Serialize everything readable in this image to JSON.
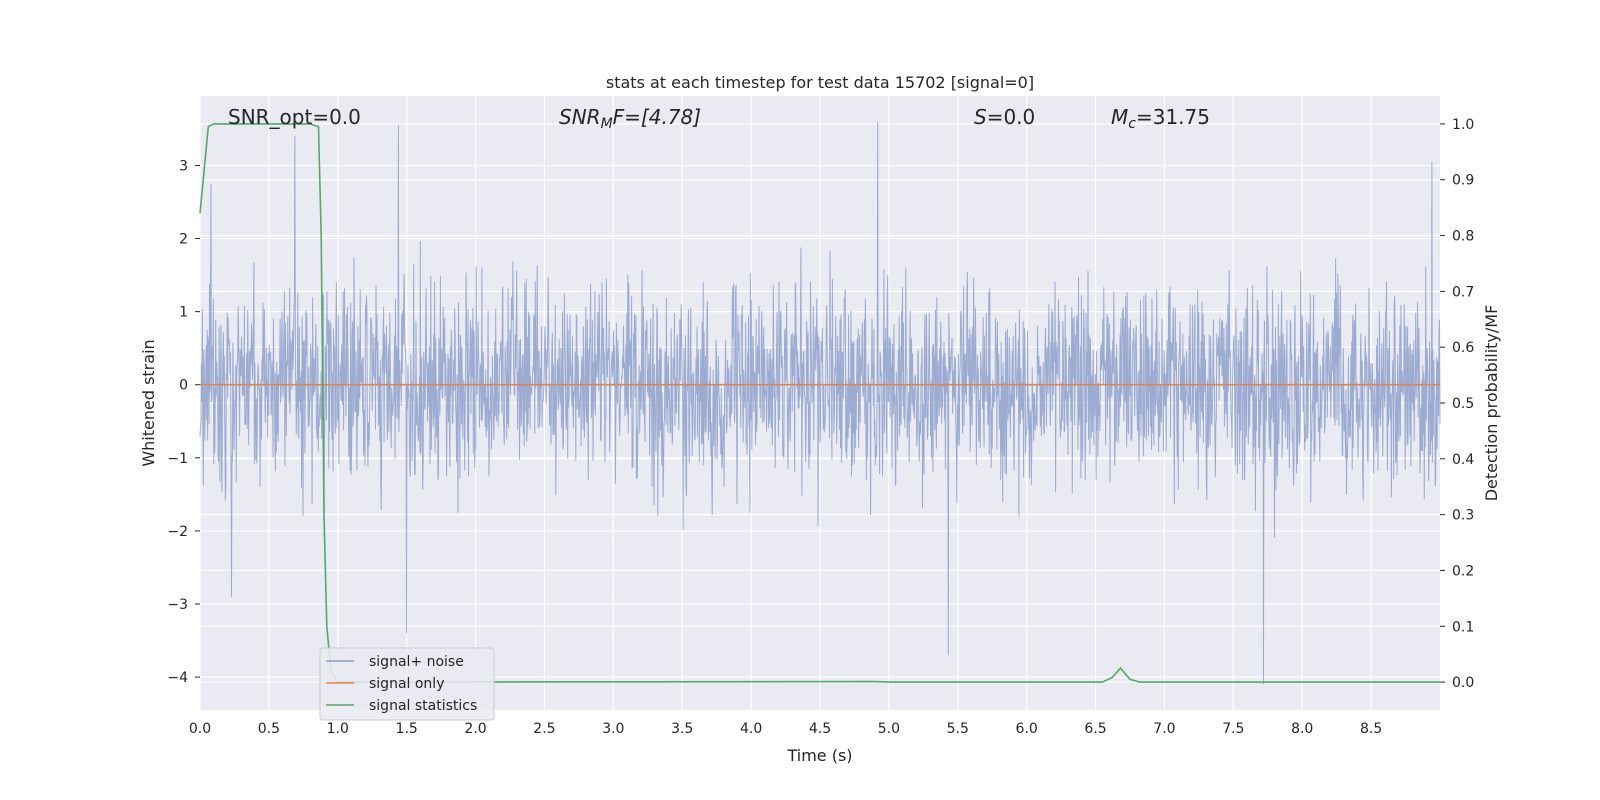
{
  "chart_data": {
    "type": "line",
    "title": "stats at each timestep for test data 15702 [signal=0]",
    "xlabel": "Time (s)",
    "ylabel_left": "Whitened strain",
    "ylabel_right": "Detection probability/MF",
    "xlim": [
      0.0,
      9.0
    ],
    "ylim_left": [
      -4.45,
      3.95
    ],
    "ylim_right": [
      -0.05,
      1.05
    ],
    "x_ticks": [
      "0.0",
      "0.5",
      "1.0",
      "1.5",
      "2.0",
      "2.5",
      "3.0",
      "3.5",
      "4.0",
      "4.5",
      "5.0",
      "5.5",
      "6.0",
      "6.5",
      "7.0",
      "7.5",
      "8.0",
      "8.5"
    ],
    "y_ticks_left": [
      "−4",
      "−3",
      "−2",
      "−1",
      "0",
      "1",
      "2",
      "3"
    ],
    "y_ticks_right": [
      "0.0",
      "0.1",
      "0.2",
      "0.3",
      "0.4",
      "0.5",
      "0.6",
      "0.7",
      "0.8",
      "0.9",
      "1.0"
    ],
    "grid": true,
    "legend_placement": "lower-left",
    "annotations": {
      "snr_opt": "SNR_opt=0.0",
      "snr_mf_base": "SNR",
      "snr_mf_sub": "M",
      "snr_mf_rest": "F=[4.78]",
      "s_symbol": "S",
      "s_value": "=0.0",
      "mc_symbol": "M",
      "mc_sub": "c",
      "mc_value": "=31.75"
    },
    "series": [
      {
        "name": "signal+ noise",
        "axis": "left",
        "color": "#8da0cb",
        "description_values": "whitened noise, roughly within ±2 with spikes to ~±3.5, 0–9 s",
        "extremes": [
          {
            "x": 0.08,
            "y": 2.75
          },
          {
            "x": 0.23,
            "y": -2.9
          },
          {
            "x": 0.69,
            "y": 3.4
          },
          {
            "x": 1.44,
            "y": 3.55
          },
          {
            "x": 1.5,
            "y": -3.4
          },
          {
            "x": 4.92,
            "y": 3.6
          },
          {
            "x": 5.43,
            "y": -3.7
          },
          {
            "x": 7.72,
            "y": -4.1
          },
          {
            "x": 8.94,
            "y": 3.05
          }
        ]
      },
      {
        "name": "signal only",
        "axis": "left",
        "color": "#dd8452",
        "x": [
          0.0,
          9.0
        ],
        "y": [
          0.0,
          0.0
        ]
      },
      {
        "name": "signal statistics",
        "axis": "right",
        "color": "#55a868",
        "x": [
          0.0,
          0.06,
          0.1,
          0.4,
          0.8,
          0.86,
          0.88,
          0.9,
          0.92,
          0.95,
          1.0,
          1.5,
          4.9,
          5.0,
          6.55,
          6.62,
          6.68,
          6.75,
          6.82,
          9.0
        ],
        "y": [
          0.84,
          0.995,
          1.0,
          1.0,
          1.0,
          0.995,
          0.8,
          0.3,
          0.1,
          0.02,
          0.0,
          0.0,
          0.001,
          0.0,
          0.0,
          0.008,
          0.025,
          0.005,
          0.0,
          0.0
        ]
      }
    ]
  },
  "colors": {
    "plot_background": "#eaeaf2",
    "grid": "#ffffff",
    "noise": "#8da0cb",
    "signal": "#dd8452",
    "statistics": "#55a868"
  }
}
